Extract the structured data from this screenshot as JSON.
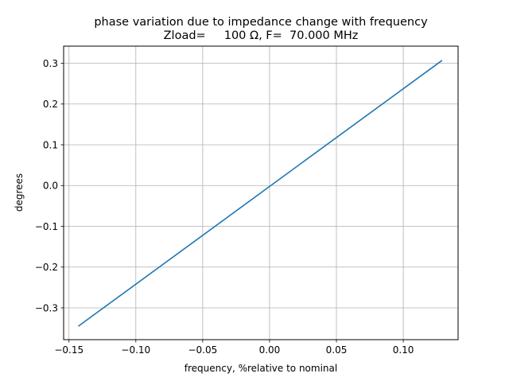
{
  "chart_data": {
    "type": "line",
    "title": "phase variation due to impedance change with frequency",
    "subtitle": "Zload=     100 Ω, F=  70.000 MHz",
    "xlabel": "frequency, %relative to nominal",
    "ylabel": "degrees",
    "xlim": [
      -0.154,
      0.141
    ],
    "ylim": [
      -0.378,
      0.342
    ],
    "xticks": [
      -0.15,
      -0.1,
      -0.05,
      0.0,
      0.05,
      0.1
    ],
    "xtick_labels": [
      "−0.15",
      "−0.10",
      "−0.05",
      "0.00",
      "0.05",
      "0.10"
    ],
    "yticks": [
      -0.3,
      -0.2,
      -0.1,
      0.0,
      0.1,
      0.2,
      0.3
    ],
    "ytick_labels": [
      "−0.3",
      "−0.2",
      "−0.1",
      "0.0",
      "0.1",
      "0.2",
      "0.3"
    ],
    "grid": true,
    "line_color": "#1f77b4",
    "series": [
      {
        "x": [
          -0.143,
          0.129
        ],
        "y": [
          -0.345,
          0.307
        ]
      }
    ]
  }
}
